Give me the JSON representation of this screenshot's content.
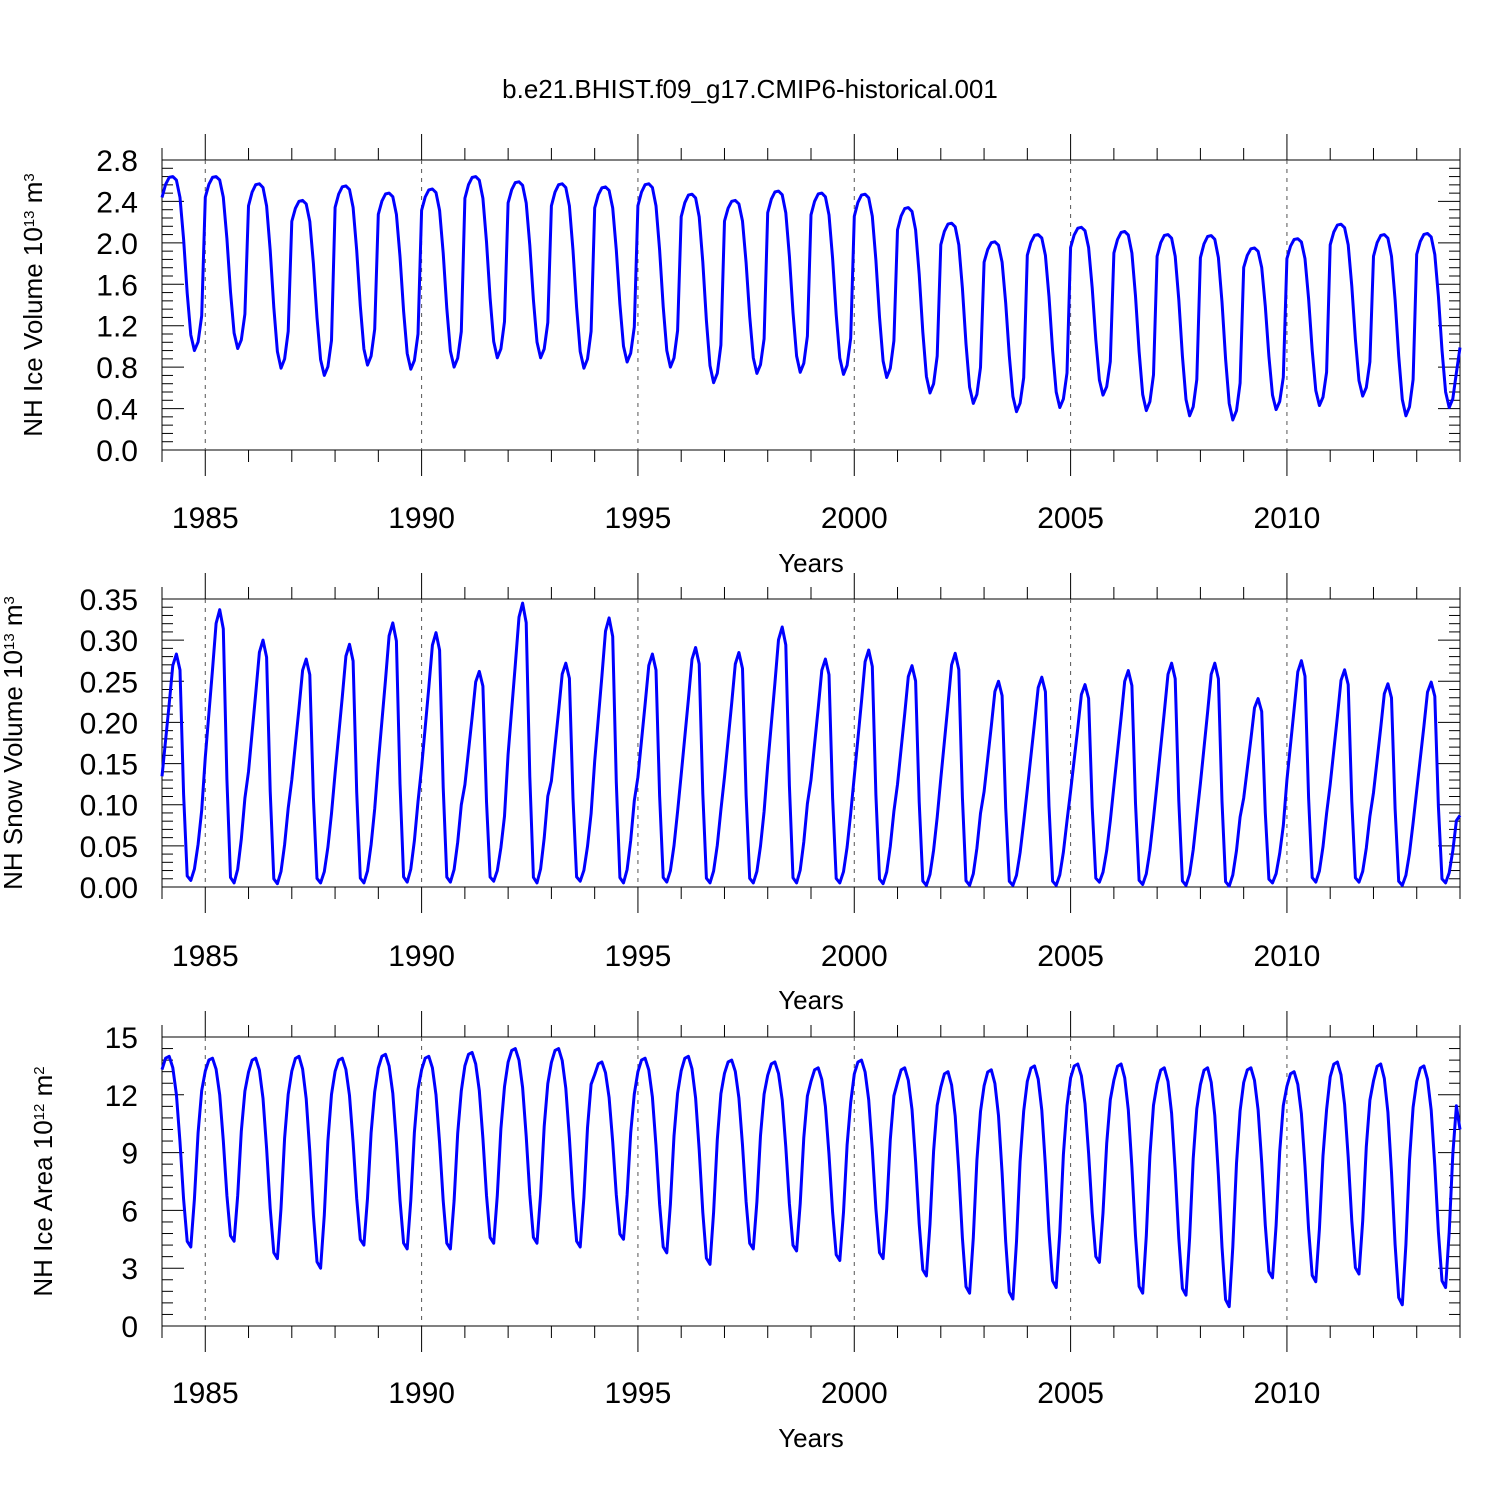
{
  "title": "b.e21.BHIST.f09_g17.CMIP6-historical.001",
  "chart_data": [
    {
      "type": "line",
      "name": "ice-volume",
      "ylabel": "NH Ice Volume 10",
      "ylabel_exp": "13",
      "ylabel_unit": " m",
      "ylabel_unit_exp": "3",
      "xlabel": "Years",
      "xlim": [
        1984.0,
        2014.0
      ],
      "ylim": [
        0.0,
        2.8
      ],
      "yticks": [
        0.0,
        0.4,
        0.8,
        1.2,
        1.6,
        2.0,
        2.4,
        2.8
      ],
      "yticklabels": [
        "0.0",
        "0.4",
        "0.8",
        "1.2",
        "1.6",
        "2.0",
        "2.4",
        "2.8"
      ],
      "xticks": [
        1985,
        1990,
        1995,
        2000,
        2005,
        2010
      ],
      "xticklabels": [
        "1985",
        "1990",
        "1995",
        "2000",
        "2005",
        "2010"
      ],
      "seasonal_shape": [
        0.88,
        0.955,
        0.995,
        1.0,
        0.98,
        0.88,
        0.64,
        0.33,
        0.09,
        0.0,
        0.05,
        0.2
      ],
      "series": [
        {
          "name": "NH Ice Volume",
          "color": "#0000ff",
          "start_year": 1984,
          "annual_max": [
            2.64,
            2.64,
            2.57,
            2.41,
            2.55,
            2.48,
            2.52,
            2.64,
            2.59,
            2.57,
            2.54,
            2.57,
            2.47,
            2.41,
            2.5,
            2.48,
            2.47,
            2.34,
            2.19,
            2.01,
            2.08,
            2.15,
            2.11,
            2.08,
            2.07,
            1.95,
            2.04,
            2.18,
            2.08,
            2.09
          ],
          "annual_min": [
            0.96,
            0.98,
            0.79,
            0.72,
            0.82,
            0.78,
            0.8,
            0.89,
            0.89,
            0.79,
            0.85,
            0.8,
            0.65,
            0.74,
            0.75,
            0.73,
            0.7,
            0.55,
            0.45,
            0.37,
            0.41,
            0.53,
            0.38,
            0.33,
            0.29,
            0.39,
            0.43,
            0.52,
            0.33,
            0.41
          ],
          "final_value": 0.99
        }
      ]
    },
    {
      "type": "line",
      "name": "snow-volume",
      "ylabel": "NH Snow Volume 10",
      "ylabel_exp": "13",
      "ylabel_unit": " m",
      "ylabel_unit_exp": "3",
      "xlabel": "Years",
      "xlim": [
        1984.0,
        2014.0
      ],
      "ylim": [
        0.0,
        0.35
      ],
      "yticks": [
        0.0,
        0.05,
        0.1,
        0.15,
        0.2,
        0.25,
        0.3,
        0.35
      ],
      "yticklabels": [
        "0.00",
        "0.05",
        "0.10",
        "0.15",
        "0.20",
        "0.25",
        "0.30",
        "0.35"
      ],
      "xticks": [
        1985,
        1990,
        1995,
        2000,
        2005,
        2010
      ],
      "xticklabels": [
        "1985",
        "1990",
        "1995",
        "2000",
        "2005",
        "2010"
      ],
      "seasonal_shape": [
        0.46,
        0.62,
        0.78,
        0.95,
        1.0,
        0.93,
        0.38,
        0.02,
        0.0,
        0.05,
        0.16,
        0.31
      ],
      "series": [
        {
          "name": "NH Snow Volume",
          "color": "#0000ff",
          "start_year": 1984,
          "annual_max": [
            0.283,
            0.337,
            0.3,
            0.277,
            0.295,
            0.321,
            0.309,
            0.262,
            0.345,
            0.272,
            0.327,
            0.283,
            0.291,
            0.285,
            0.316,
            0.277,
            0.288,
            0.269,
            0.284,
            0.25,
            0.255,
            0.246,
            0.263,
            0.272,
            0.272,
            0.229,
            0.275,
            0.264,
            0.247,
            0.249
          ],
          "annual_min": [
            0.008,
            0.005,
            0.004,
            0.005,
            0.005,
            0.006,
            0.006,
            0.007,
            0.005,
            0.007,
            0.005,
            0.006,
            0.005,
            0.005,
            0.005,
            0.005,
            0.004,
            0.002,
            0.002,
            0.002,
            0.002,
            0.006,
            0.003,
            0.002,
            0.001,
            0.005,
            0.006,
            0.006,
            0.002,
            0.005
          ],
          "final_value": 0.087
        }
      ]
    },
    {
      "type": "line",
      "name": "ice-area",
      "ylabel": "NH Ice Area 10",
      "ylabel_exp": "12",
      "ylabel_unit": " m",
      "ylabel_unit_exp": "2",
      "xlabel": "Years",
      "xlim": [
        1984.0,
        2014.0
      ],
      "ylim": [
        0,
        15
      ],
      "yticks": [
        0,
        3,
        6,
        9,
        12,
        15
      ],
      "yticklabels": [
        "0",
        "3",
        "6",
        "9",
        "12",
        "15"
      ],
      "xticks": [
        1985,
        1990,
        1995,
        2000,
        2005,
        2010
      ],
      "xticklabels": [
        "1985",
        "1990",
        "1995",
        "2000",
        "2005",
        "2010"
      ],
      "seasonal_shape": [
        0.93,
        0.99,
        1.0,
        0.94,
        0.8,
        0.55,
        0.25,
        0.03,
        0.0,
        0.25,
        0.6,
        0.82
      ],
      "series": [
        {
          "name": "NH Ice Area",
          "color": "#0000ff",
          "start_year": 1984,
          "annual_max": [
            14.0,
            13.9,
            13.9,
            14.0,
            13.9,
            14.1,
            14.0,
            14.2,
            14.4,
            14.4,
            13.7,
            13.9,
            14.0,
            13.8,
            13.7,
            13.4,
            13.8,
            13.4,
            13.2,
            13.3,
            13.5,
            13.6,
            13.6,
            13.4,
            13.4,
            13.4,
            13.2,
            13.7,
            13.6,
            13.5
          ],
          "annual_min": [
            4.1,
            4.4,
            3.5,
            3.0,
            4.2,
            4.0,
            4.0,
            4.3,
            4.3,
            4.1,
            4.5,
            3.8,
            3.2,
            4.0,
            3.9,
            3.4,
            3.5,
            2.6,
            1.7,
            1.4,
            2.0,
            3.3,
            1.7,
            1.6,
            1.0,
            2.5,
            2.3,
            2.7,
            1.1,
            2.0
          ],
          "final_value": 10.2
        }
      ]
    }
  ]
}
